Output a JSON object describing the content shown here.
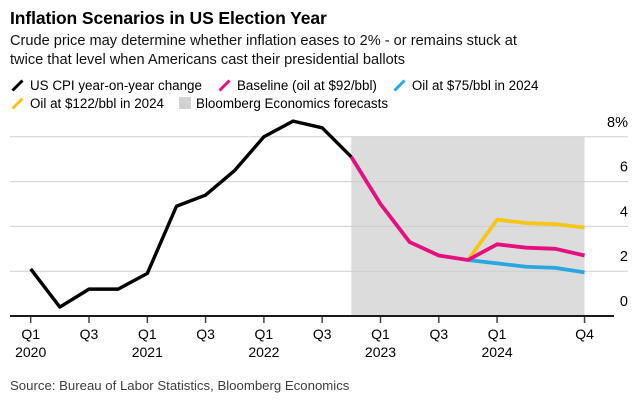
{
  "header": {
    "title": "Inflation Scenarios in US Election Year",
    "subtitle_line1": "Crude price may determine whether inflation eases to 2% - or remains stuck at",
    "subtitle_line2": "twice that level when Americans cast their presidential ballots"
  },
  "legend": {
    "row1": [
      {
        "label": "US CPI year-on-year change",
        "color": "#000000",
        "icon": "line"
      },
      {
        "label": "Baseline (oil at $92/bbl)",
        "color": "#e3107e",
        "icon": "line"
      },
      {
        "label": "Oil at $75/bbl in 2024",
        "color": "#29a8e0",
        "icon": "line"
      }
    ],
    "row2": [
      {
        "label": "Oil at $122/bbl in 2024",
        "color": "#f5c518",
        "icon": "line"
      },
      {
        "label": "Bloomberg Economics forecasts",
        "color": "#d2d2d2",
        "icon": "square"
      }
    ]
  },
  "chart_data": {
    "type": "line",
    "x_unit": "quarters from Q1 2020",
    "x_range": [
      "Q1 2020",
      "Q4 2024"
    ],
    "ylim": [
      0,
      9
    ],
    "grid": "horizontal",
    "y_ticks": [
      {
        "value": 8,
        "label": "8%"
      },
      {
        "value": 6,
        "label": "6"
      },
      {
        "value": 4,
        "label": "4"
      },
      {
        "value": 2,
        "label": "2"
      },
      {
        "value": 0,
        "label": "0"
      }
    ],
    "x_ticks": [
      {
        "q": 0,
        "label": "Q1",
        "year": "2020"
      },
      {
        "q": 2,
        "label": "Q3",
        "year": ""
      },
      {
        "q": 4,
        "label": "Q1",
        "year": "2021"
      },
      {
        "q": 6,
        "label": "Q3",
        "year": ""
      },
      {
        "q": 8,
        "label": "Q1",
        "year": "2022"
      },
      {
        "q": 10,
        "label": "Q3",
        "year": ""
      },
      {
        "q": 12,
        "label": "Q1",
        "year": "2023"
      },
      {
        "q": 14,
        "label": "Q3",
        "year": ""
      },
      {
        "q": 16,
        "label": "Q1",
        "year": "2024"
      },
      {
        "q": 19,
        "label": "Q4",
        "year": ""
      }
    ],
    "forecast_region": {
      "from_q": 11,
      "to_q": 19,
      "label": "Bloomberg Economics forecasts"
    },
    "series": [
      {
        "name": "US CPI year-on-year change",
        "color": "#000000",
        "start_q": 0,
        "values": [
          2.1,
          0.4,
          1.2,
          1.2,
          1.9,
          4.9,
          5.4,
          6.5,
          8.0,
          8.7,
          8.4,
          7.1
        ]
      },
      {
        "name": "Oil at $75/bbl in 2024",
        "color": "#29a8e0",
        "start_q": 15,
        "values": [
          2.5,
          2.35,
          2.2,
          2.15,
          1.95
        ]
      },
      {
        "name": "Oil at $122/bbl in 2024",
        "color": "#f5c518",
        "start_q": 15,
        "values": [
          2.5,
          4.3,
          4.15,
          4.1,
          3.95
        ]
      },
      {
        "name": "Baseline (oil at $92/bbl)",
        "color": "#e3107e",
        "start_q": 11,
        "values": [
          7.1,
          5.0,
          3.3,
          2.7,
          2.5,
          3.2,
          3.05,
          3.0,
          2.7
        ]
      }
    ],
    "style": {
      "forecast_fill": "#dcdcdc",
      "gridline": "#cfcfcf",
      "axis": "#1a1a1a",
      "tick": "#444444",
      "label_color": "#000000"
    }
  },
  "source": "Source: Bureau of Labor Statistics, Bloomberg Economics"
}
